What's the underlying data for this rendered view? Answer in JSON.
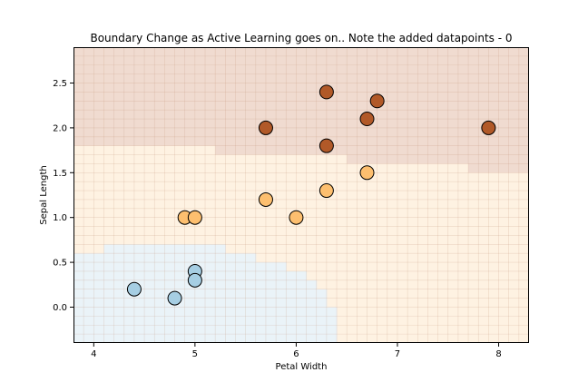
{
  "chart_data": {
    "type": "scatter",
    "title": "Boundary Change as Active Learning goes on.. Note the added datapoints - 0",
    "xlabel": "Petal Width",
    "ylabel": "Sepal Length",
    "xlim": [
      3.8,
      8.3
    ],
    "ylim": [
      -0.4,
      2.9
    ],
    "xticks": [
      "4",
      "5",
      "6",
      "7",
      "8"
    ],
    "yticks": [
      "0.0",
      "0.5",
      "1.0",
      "1.5",
      "2.0",
      "2.5"
    ],
    "xtick_values": [
      4,
      5,
      6,
      7,
      8
    ],
    "ytick_values": [
      0.0,
      0.5,
      1.0,
      1.5,
      2.0,
      2.5
    ],
    "grid": false,
    "colors": {
      "class_0": "#a6cee3",
      "class_1": "#fdbf6f",
      "class_2": "#b15928",
      "region_0": "#eaf3f8",
      "region_1": "#fef2e2",
      "region_2": "#f0dbd0",
      "marker_edge": "#000000"
    },
    "series": [
      {
        "class": 0,
        "color": "#a6cee3",
        "x": [
          4.4,
          4.8,
          5.0,
          5.0
        ],
        "y": [
          0.2,
          0.1,
          0.4,
          0.3
        ]
      },
      {
        "class": 1,
        "color": "#fdbf6f",
        "x": [
          4.9,
          5.0,
          5.7,
          6.0,
          6.3,
          6.7
        ],
        "y": [
          1.0,
          1.0,
          1.2,
          1.0,
          1.3,
          1.5
        ]
      },
      {
        "class": 2,
        "color": "#b15928",
        "x": [
          5.7,
          6.3,
          6.3,
          6.7,
          6.8,
          7.9
        ],
        "y": [
          2.0,
          2.4,
          1.8,
          2.1,
          2.3,
          2.0
        ]
      }
    ],
    "decision_regions": {
      "class_2_lower_boundary": [
        {
          "x_range": [
            3.8,
            5.2
          ],
          "y": 1.8
        },
        {
          "x_range": [
            5.2,
            6.5
          ],
          "y": 1.7
        },
        {
          "x_range": [
            6.5,
            7.7
          ],
          "y": 1.6
        },
        {
          "x_range": [
            7.7,
            8.3
          ],
          "y": 1.5
        }
      ],
      "class_0_upper_boundary": [
        {
          "x_range": [
            3.8,
            4.1
          ],
          "y": 0.6
        },
        {
          "x_range": [
            4.1,
            5.3
          ],
          "y": 0.7
        },
        {
          "x_range": [
            5.3,
            5.6
          ],
          "y": 0.6
        },
        {
          "x_range": [
            5.6,
            5.9
          ],
          "y": 0.5
        },
        {
          "x_range": [
            5.9,
            6.1
          ],
          "y": 0.4
        },
        {
          "x_range": [
            6.1,
            6.2
          ],
          "y": 0.3
        },
        {
          "x_range": [
            6.2,
            6.3
          ],
          "y": 0.2
        },
        {
          "x_range": [
            6.3,
            6.4
          ],
          "y": 0.0
        }
      ]
    }
  }
}
